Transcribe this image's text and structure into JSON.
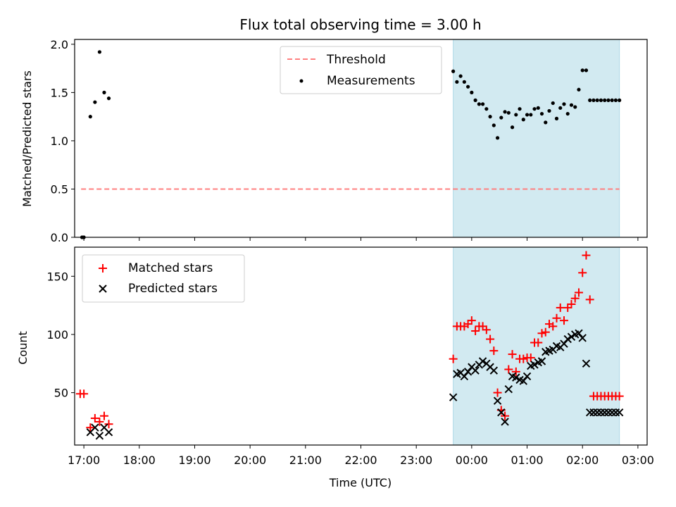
{
  "figure_title": "Flux total observing time = 3.00 h",
  "colors": {
    "threshold": "#ff7f7f",
    "measurements": "#000000",
    "matched": "#ff0000",
    "predicted": "#000000",
    "observing_window": "#add8e6"
  },
  "chart_data": [
    {
      "type": "scatter",
      "title": "Flux total observing time = 3.00 h",
      "xlabel": "",
      "ylabel": "Matched/Predicted stars",
      "xlim": [
        "16:50",
        "03:10"
      ],
      "ylim": [
        0,
        2.05
      ],
      "y_ticks": [
        "0.0",
        "0.5",
        "1.0",
        "1.5",
        "2.0"
      ],
      "y_tick_values": [
        0,
        0.5,
        1.0,
        1.5,
        2.0
      ],
      "shaded_interval": [
        "23:40",
        "02:40"
      ],
      "legend": {
        "position": "upper center",
        "entries": [
          {
            "label": "Threshold",
            "marker": "dashed-line"
          },
          {
            "label": "Measurements",
            "marker": "dot"
          }
        ]
      },
      "series": [
        {
          "name": "Threshold",
          "style": "dashed-line",
          "x": [
            "16:57",
            "02:40"
          ],
          "y": [
            0.5,
            0.5
          ]
        },
        {
          "name": "Measurements",
          "style": "dot",
          "x": [
            "16:58",
            "17:00",
            "17:07",
            "17:12",
            "17:17",
            "17:22",
            "17:27",
            "23:40",
            "23:44",
            "23:48",
            "23:52",
            "23:56",
            "00:00",
            "00:04",
            "00:08",
            "00:12",
            "00:16",
            "00:20",
            "00:24",
            "00:28",
            "00:32",
            "00:36",
            "00:40",
            "00:44",
            "00:48",
            "00:52",
            "00:56",
            "01:00",
            "01:04",
            "01:08",
            "01:12",
            "01:16",
            "01:20",
            "01:24",
            "01:28",
            "01:32",
            "01:36",
            "01:40",
            "01:44",
            "01:48",
            "01:52",
            "01:56",
            "02:00",
            "02:04",
            "02:08",
            "02:12",
            "02:16",
            "02:20",
            "02:24",
            "02:28",
            "02:32",
            "02:36",
            "02:40"
          ],
          "y": [
            0,
            0,
            1.25,
            1.4,
            1.92,
            1.5,
            1.44,
            1.72,
            1.61,
            1.67,
            1.61,
            1.56,
            1.5,
            1.42,
            1.38,
            1.38,
            1.33,
            1.25,
            1.16,
            1.03,
            1.24,
            1.3,
            1.29,
            1.14,
            1.27,
            1.33,
            1.22,
            1.27,
            1.27,
            1.33,
            1.34,
            1.28,
            1.19,
            1.31,
            1.39,
            1.23,
            1.34,
            1.38,
            1.28,
            1.37,
            1.35,
            1.53,
            1.73,
            1.73,
            1.42,
            1.42,
            1.42,
            1.42,
            1.42,
            1.42,
            1.42,
            1.42,
            1.42
          ]
        }
      ]
    },
    {
      "type": "scatter",
      "xlabel": "Time (UTC)",
      "ylabel": "Count",
      "xlim": [
        "16:50",
        "03:10"
      ],
      "ylim": [
        5,
        175
      ],
      "y_ticks": [
        "50",
        "100",
        "150"
      ],
      "y_tick_values": [
        50,
        100,
        150
      ],
      "x_ticks": [
        "17:00",
        "18:00",
        "19:00",
        "20:00",
        "21:00",
        "22:00",
        "23:00",
        "00:00",
        "01:00",
        "02:00",
        "03:00"
      ],
      "shaded_interval": [
        "23:40",
        "02:40"
      ],
      "legend": {
        "position": "upper left",
        "entries": [
          {
            "label": "Matched stars",
            "marker": "plus"
          },
          {
            "label": "Predicted stars",
            "marker": "x"
          }
        ]
      },
      "series": [
        {
          "name": "Matched stars",
          "style": "plus",
          "x": [
            "16:56",
            "17:00",
            "17:07",
            "17:12",
            "17:17",
            "17:22",
            "17:27",
            "23:40",
            "23:44",
            "23:48",
            "23:52",
            "23:56",
            "00:00",
            "00:04",
            "00:08",
            "00:12",
            "00:16",
            "00:20",
            "00:24",
            "00:28",
            "00:32",
            "00:36",
            "00:40",
            "00:44",
            "00:48",
            "00:52",
            "00:56",
            "01:00",
            "01:04",
            "01:08",
            "01:12",
            "01:16",
            "01:20",
            "01:24",
            "01:28",
            "01:32",
            "01:36",
            "01:40",
            "01:44",
            "01:48",
            "01:52",
            "01:56",
            "02:00",
            "02:04",
            "02:08",
            "02:12",
            "02:16",
            "02:20",
            "02:24",
            "02:28",
            "02:32",
            "02:36",
            "02:40"
          ],
          "y": [
            49,
            49,
            20,
            28,
            25,
            30,
            23,
            79,
            107,
            107,
            107,
            109,
            112,
            103,
            107,
            107,
            104,
            96,
            86,
            50,
            35,
            30,
            70,
            83,
            68,
            79,
            79,
            80,
            80,
            93,
            93,
            101,
            102,
            109,
            107,
            114,
            123,
            112,
            123,
            126,
            131,
            136,
            153,
            168,
            130,
            47,
            47,
            47,
            47,
            47,
            47,
            47,
            47
          ]
        },
        {
          "name": "Predicted stars",
          "style": "x",
          "x": [
            "17:07",
            "17:12",
            "17:17",
            "17:22",
            "17:27",
            "23:40",
            "23:44",
            "23:48",
            "23:52",
            "23:56",
            "00:00",
            "00:04",
            "00:08",
            "00:12",
            "00:16",
            "00:20",
            "00:24",
            "00:28",
            "00:32",
            "00:36",
            "00:40",
            "00:44",
            "00:48",
            "00:52",
            "00:56",
            "01:00",
            "01:04",
            "01:08",
            "01:12",
            "01:16",
            "01:20",
            "01:24",
            "01:28",
            "01:32",
            "01:36",
            "01:40",
            "01:44",
            "01:48",
            "01:52",
            "01:56",
            "02:00",
            "02:04",
            "02:08",
            "02:12",
            "02:16",
            "02:20",
            "02:24",
            "02:28",
            "02:32",
            "02:36",
            "02:40"
          ],
          "y": [
            16,
            20,
            13,
            20,
            16,
            46,
            66,
            67,
            64,
            68,
            72,
            69,
            74,
            77,
            75,
            72,
            69,
            43,
            33,
            25,
            53,
            64,
            63,
            61,
            60,
            64,
            73,
            74,
            76,
            77,
            85,
            86,
            87,
            90,
            89,
            92,
            96,
            98,
            100,
            101,
            97,
            75,
            33,
            33,
            33,
            33,
            33,
            33,
            33,
            33,
            33
          ]
        }
      ]
    }
  ]
}
